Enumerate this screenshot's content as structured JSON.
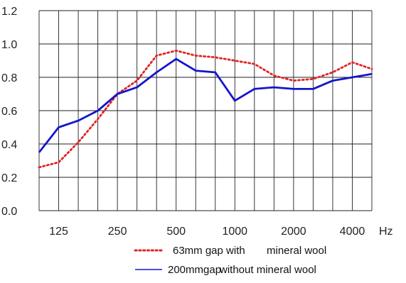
{
  "chart_data": {
    "type": "line",
    "x_unit": "Hz",
    "x_scale": "log",
    "grid": true,
    "legend_position": "bottom",
    "x": [
      100,
      125,
      160,
      200,
      250,
      315,
      400,
      500,
      630,
      800,
      1000,
      1250,
      1600,
      2000,
      2500,
      3150,
      4000,
      5000
    ],
    "x_tick_labels": [
      "125",
      "250",
      "500",
      "1000",
      "2000",
      "4000"
    ],
    "x_tick_values": [
      125,
      250,
      500,
      1000,
      2000,
      4000
    ],
    "ylim": [
      0.0,
      1.2
    ],
    "y_ticks": [
      0.0,
      0.2,
      0.4,
      0.6,
      0.8,
      1.0,
      1.2
    ],
    "y_tick_labels": [
      "0.0",
      "0.2",
      "0.4",
      "0.6",
      "0.8",
      "1.0",
      "1.2"
    ],
    "series": [
      {
        "name": "63mm gap with mineral wool",
        "legend_parts": [
          "63mm gap with",
          "mineral wool"
        ],
        "color": "#e02424",
        "style": "dotted",
        "values": [
          0.26,
          0.29,
          0.41,
          0.55,
          0.7,
          0.78,
          0.93,
          0.96,
          0.93,
          0.92,
          0.9,
          0.88,
          0.81,
          0.78,
          0.79,
          0.83,
          0.89,
          0.85
        ]
      },
      {
        "name": "200mmgap without mineral wool",
        "legend_parts": [
          "200mmgap",
          "without mineral wool"
        ],
        "color": "#1515cc",
        "style": "solid",
        "values": [
          0.35,
          0.5,
          0.54,
          0.6,
          0.7,
          0.74,
          0.83,
          0.91,
          0.84,
          0.83,
          0.66,
          0.73,
          0.74,
          0.73,
          0.73,
          0.78,
          0.8,
          0.82
        ]
      }
    ]
  }
}
